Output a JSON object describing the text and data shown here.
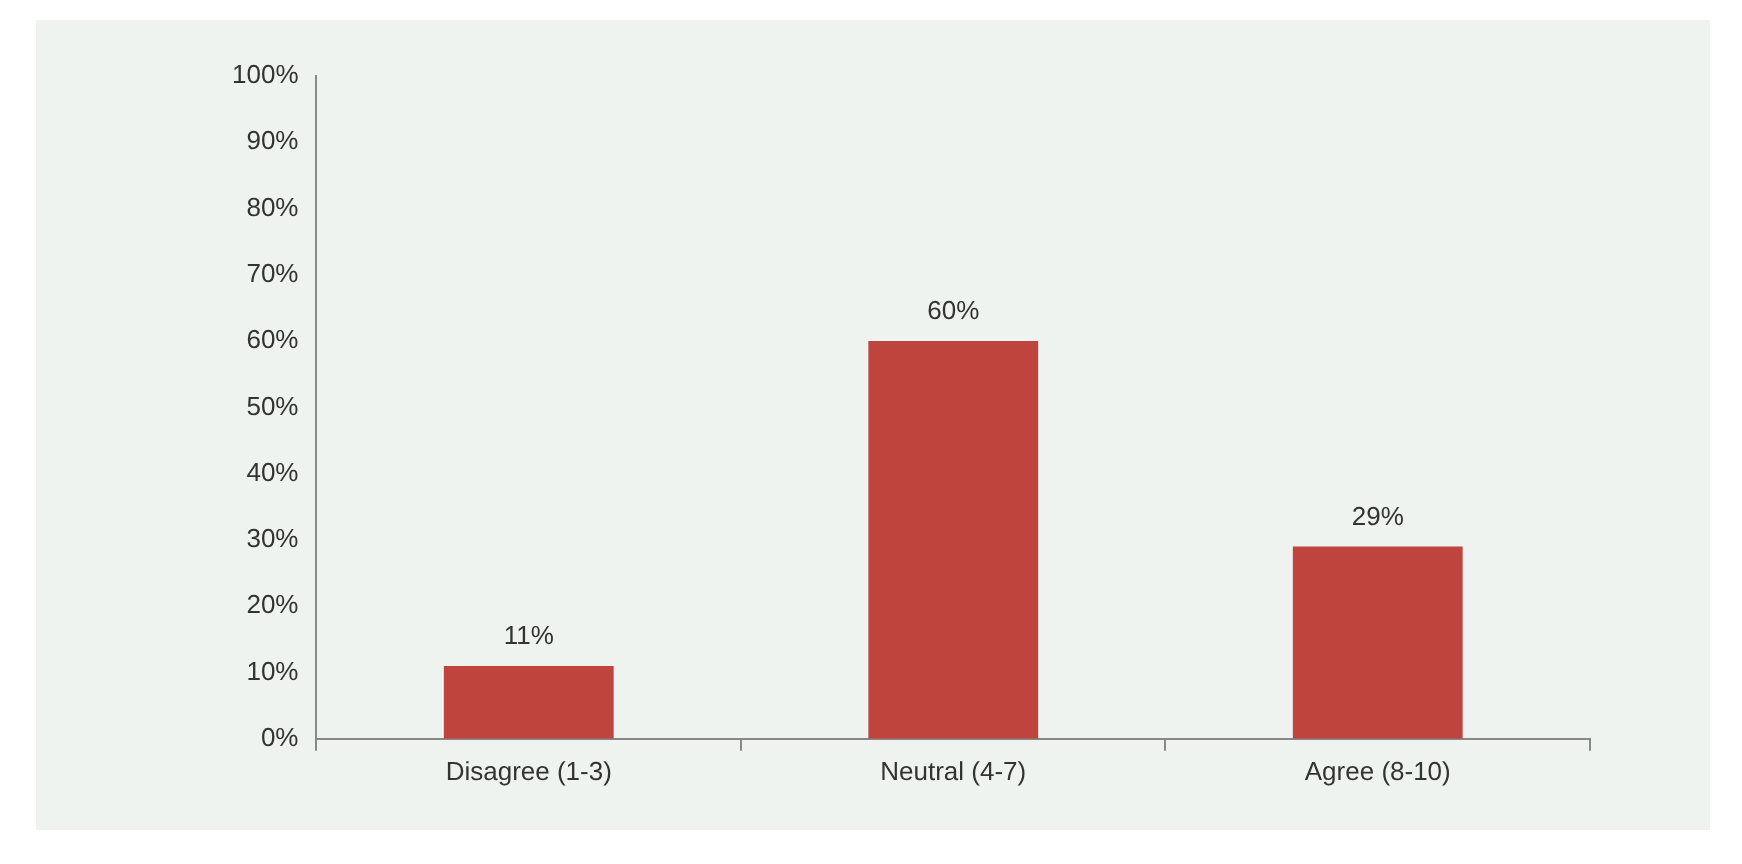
{
  "chart_data": {
    "type": "bar",
    "categories": [
      "Disagree (1-3)",
      "Neutral (4-7)",
      "Agree (8-10)"
    ],
    "values": [
      11,
      60,
      29
    ],
    "value_labels": [
      "11%",
      "60%",
      "29%"
    ],
    "color": "#c0443e",
    "ylim": [
      0,
      100
    ],
    "yticks": [
      {
        "value": 0,
        "label": "0%"
      },
      {
        "value": 10,
        "label": "10%"
      },
      {
        "value": 20,
        "label": "20%"
      },
      {
        "value": 30,
        "label": "30%"
      },
      {
        "value": 40,
        "label": "40%"
      },
      {
        "value": 50,
        "label": "50%"
      },
      {
        "value": 60,
        "label": "60%"
      },
      {
        "value": 70,
        "label": "70%"
      },
      {
        "value": 80,
        "label": "80%"
      },
      {
        "value": 90,
        "label": "90%"
      },
      {
        "value": 100,
        "label": "100%"
      }
    ],
    "grid": false,
    "legend": false
  }
}
